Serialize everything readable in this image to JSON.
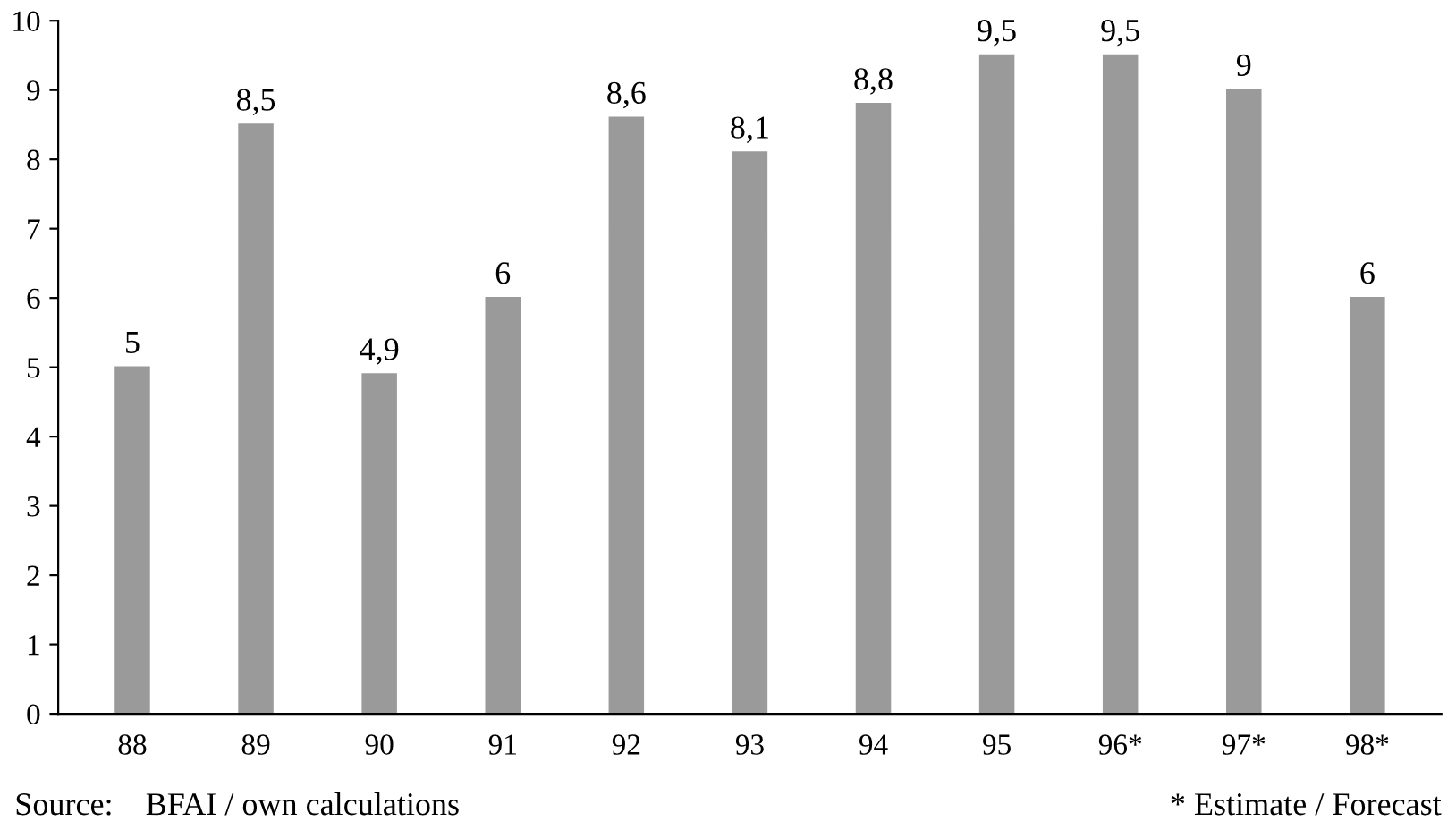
{
  "chart_data": {
    "type": "bar",
    "categories": [
      "88",
      "89",
      "90",
      "91",
      "92",
      "93",
      "94",
      "95",
      "96*",
      "97*",
      "98*"
    ],
    "values": [
      5,
      8.5,
      4.9,
      6,
      8.6,
      8.1,
      8.8,
      9.5,
      9.5,
      9,
      6
    ],
    "value_labels": [
      "5",
      "8,5",
      "4,9",
      "6",
      "8,6",
      "8,1",
      "8,8",
      "9,5",
      "9,5",
      "9",
      "6"
    ],
    "color": "#9a9a9a",
    "ylim": [
      0,
      10
    ],
    "yticks": [
      0,
      1,
      2,
      3,
      4,
      5,
      6,
      7,
      8,
      9,
      10
    ],
    "grid": false,
    "legend": false,
    "annotations": [
      "Source:    BFAI / own calculations",
      "* Estimate / Forecast"
    ]
  }
}
